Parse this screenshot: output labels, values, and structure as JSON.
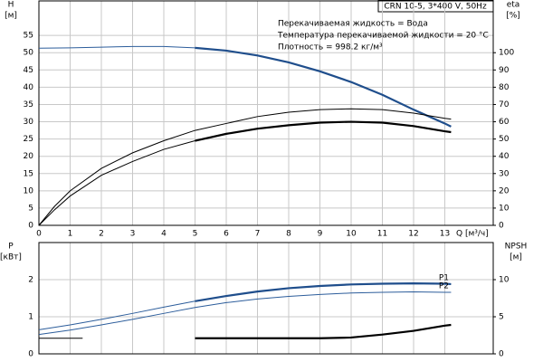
{
  "chart_data": [
    {
      "type": "line",
      "title": "CRN 10-5, 3*400 V, 50Hz",
      "annotations": [
        "Перекачиваемая жидкость = Вода",
        "Температура перекачиваемой жидкости = 20 °C",
        "Плотность = 998.2 кг/м³"
      ],
      "y_label": "H",
      "y_unit": "[м]",
      "y2_label": "eta",
      "y2_unit": "[%]",
      "x_label": "Q [м³/ч]",
      "xlim": [
        0,
        14.55
      ],
      "xticks": [
        0,
        1,
        2,
        3,
        4,
        5,
        6,
        7,
        8,
        9,
        10,
        11,
        12,
        13
      ],
      "ylim": [
        0,
        65
      ],
      "yticks": [
        0,
        5,
        10,
        15,
        20,
        25,
        30,
        35,
        40,
        45,
        50,
        55
      ],
      "y2lim": [
        0,
        130
      ],
      "y2ticks": [
        0,
        10,
        20,
        30,
        40,
        50,
        60,
        70,
        80,
        90,
        100
      ],
      "grid": true,
      "series": [
        {
          "color": "#2c5d9b",
          "width": 1,
          "x": [
            0,
            1,
            2,
            3,
            4,
            5
          ],
          "values": [
            51.3,
            51.4,
            51.6,
            51.8,
            51.8,
            51.4
          ]
        },
        {
          "color": "#1f4e8c",
          "width": 2.2,
          "x": [
            5,
            6,
            7,
            8,
            9,
            10,
            11,
            12,
            13,
            13.2
          ],
          "values": [
            51.4,
            50.6,
            49.2,
            47.2,
            44.6,
            41.5,
            37.8,
            33.5,
            29.5,
            28.6
          ]
        },
        {
          "color": "#000000",
          "width": 1,
          "axis": "y2",
          "x": [
            0,
            0.5,
            1,
            2,
            3,
            4,
            5,
            6,
            7,
            8,
            9,
            10,
            11,
            12,
            13,
            13.2
          ],
          "values": [
            0,
            11,
            20,
            33,
            42,
            49,
            55,
            59,
            63,
            65.5,
            67,
            67.5,
            67,
            65,
            62,
            61.5
          ]
        },
        {
          "color": "#000000",
          "width": 1,
          "axis": "y2",
          "x": [
            0,
            0.5,
            1,
            2,
            3,
            4,
            5
          ],
          "values": [
            0,
            9,
            17,
            29,
            37,
            44,
            49
          ]
        },
        {
          "color": "#000000",
          "width": 2.2,
          "axis": "y2",
          "x": [
            5,
            6,
            7,
            8,
            9,
            10,
            11,
            12,
            13,
            13.2
          ],
          "values": [
            49,
            53,
            56,
            58,
            59.5,
            60,
            59.5,
            57.5,
            54.5,
            54
          ]
        }
      ]
    },
    {
      "type": "line",
      "y_label": "P",
      "y_unit": "[кВт]",
      "y2_label": "NPSH",
      "y2_unit": "[м]",
      "xlim": [
        0,
        14.55
      ],
      "xticks": [
        0,
        1,
        2,
        3,
        4,
        5,
        6,
        7,
        8,
        9,
        10,
        11,
        12,
        13
      ],
      "ylim": [
        0,
        3
      ],
      "yticks": [
        0,
        1,
        2
      ],
      "y2lim": [
        0,
        15
      ],
      "y2ticks": [
        0,
        5,
        10
      ],
      "grid": true,
      "series": [
        {
          "color": "#2c5d9b",
          "width": 1,
          "x": [
            0,
            1,
            2,
            3,
            4,
            5
          ],
          "values": [
            0.65,
            0.78,
            0.93,
            1.09,
            1.26,
            1.42
          ]
        },
        {
          "name": "P1",
          "color": "#1f4e8c",
          "width": 2.2,
          "x": [
            5,
            6,
            7,
            8,
            9,
            10,
            11,
            12,
            13,
            13.2
          ],
          "values": [
            1.42,
            1.56,
            1.68,
            1.77,
            1.83,
            1.87,
            1.89,
            1.9,
            1.89,
            1.88
          ]
        },
        {
          "name": "P2",
          "color": "#2c5d9b",
          "width": 1,
          "x": [
            0,
            1,
            2,
            3,
            4,
            5,
            6,
            7,
            8,
            9,
            10,
            11,
            12,
            13,
            13.2
          ],
          "values": [
            0.52,
            0.64,
            0.78,
            0.93,
            1.09,
            1.25,
            1.38,
            1.48,
            1.55,
            1.6,
            1.64,
            1.66,
            1.67,
            1.66,
            1.66
          ]
        },
        {
          "color": "#000000",
          "width": 1,
          "axis": "y2",
          "x": [
            0,
            1.4
          ],
          "values": [
            2.1,
            2.1
          ]
        },
        {
          "color": "#000000",
          "width": 2.2,
          "axis": "y2",
          "x": [
            5,
            6,
            7,
            8,
            9,
            10,
            11,
            12,
            13,
            13.2
          ],
          "values": [
            2.1,
            2.1,
            2.1,
            2.1,
            2.1,
            2.2,
            2.6,
            3.1,
            3.8,
            3.9
          ]
        }
      ]
    }
  ]
}
